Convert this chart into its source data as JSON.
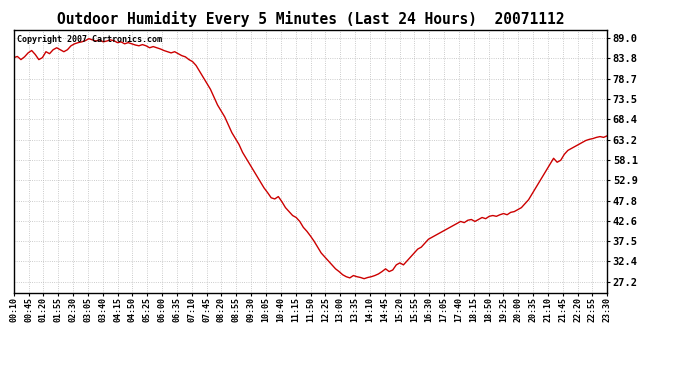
{
  "title": "Outdoor Humidity Every 5 Minutes (Last 24 Hours)  20071112",
  "copyright": "Copyright 2007 Cartronics.com",
  "line_color": "#cc0000",
  "background_color": "#ffffff",
  "plot_background": "#ffffff",
  "grid_color": "#bbbbbb",
  "yticks": [
    27.2,
    32.4,
    37.5,
    42.6,
    47.8,
    52.9,
    58.1,
    63.2,
    68.4,
    73.5,
    78.7,
    83.8,
    89.0
  ],
  "ylim": [
    24.5,
    91.0
  ],
  "x_labels": [
    "00:10",
    "00:45",
    "01:20",
    "01:55",
    "02:30",
    "03:05",
    "03:40",
    "04:15",
    "04:50",
    "05:25",
    "06:00",
    "06:35",
    "07:10",
    "07:45",
    "08:20",
    "08:55",
    "09:30",
    "10:05",
    "10:40",
    "11:15",
    "11:50",
    "12:25",
    "13:00",
    "13:35",
    "14:10",
    "14:45",
    "15:20",
    "15:55",
    "16:30",
    "17:05",
    "17:40",
    "18:15",
    "18:50",
    "19:25",
    "20:00",
    "20:35",
    "21:10",
    "21:45",
    "22:20",
    "22:55",
    "23:30"
  ],
  "humidity_values": [
    84.0,
    84.3,
    83.5,
    84.2,
    85.2,
    85.8,
    84.8,
    83.5,
    84.0,
    85.5,
    85.0,
    86.0,
    86.5,
    86.0,
    85.5,
    86.0,
    87.0,
    87.5,
    87.8,
    88.0,
    88.3,
    88.8,
    88.5,
    88.2,
    88.5,
    88.0,
    88.2,
    88.5,
    88.3,
    87.8,
    88.0,
    87.5,
    87.8,
    87.5,
    87.2,
    87.0,
    87.3,
    87.0,
    86.5,
    86.8,
    86.5,
    86.2,
    85.8,
    85.5,
    85.2,
    85.5,
    85.0,
    84.5,
    84.2,
    83.5,
    83.0,
    82.0,
    80.5,
    79.0,
    77.5,
    76.0,
    74.0,
    72.0,
    70.5,
    69.0,
    67.0,
    65.0,
    63.5,
    62.0,
    60.0,
    58.5,
    57.0,
    55.5,
    54.0,
    52.5,
    51.0,
    49.8,
    48.5,
    48.2,
    48.8,
    47.5,
    46.0,
    45.0,
    44.0,
    43.5,
    42.5,
    41.0,
    40.0,
    38.8,
    37.5,
    36.0,
    34.5,
    33.5,
    32.5,
    31.5,
    30.5,
    29.8,
    29.0,
    28.5,
    28.2,
    28.8,
    28.5,
    28.3,
    28.0,
    28.3,
    28.5,
    28.8,
    29.2,
    29.8,
    30.5,
    29.8,
    30.2,
    31.5,
    32.0,
    31.5,
    32.5,
    33.5,
    34.5,
    35.5,
    36.0,
    37.0,
    38.0,
    38.5,
    39.0,
    39.5,
    40.0,
    40.5,
    41.0,
    41.5,
    42.0,
    42.5,
    42.2,
    42.8,
    43.0,
    42.5,
    43.0,
    43.5,
    43.2,
    43.8,
    44.0,
    43.8,
    44.2,
    44.5,
    44.2,
    44.8,
    45.0,
    45.5,
    46.0,
    47.0,
    48.0,
    49.5,
    51.0,
    52.5,
    54.0,
    55.5,
    57.0,
    58.5,
    57.5,
    58.0,
    59.5,
    60.5,
    61.0,
    61.5,
    62.0,
    62.5,
    63.0,
    63.3,
    63.5,
    63.8,
    64.0,
    63.8,
    64.2
  ]
}
